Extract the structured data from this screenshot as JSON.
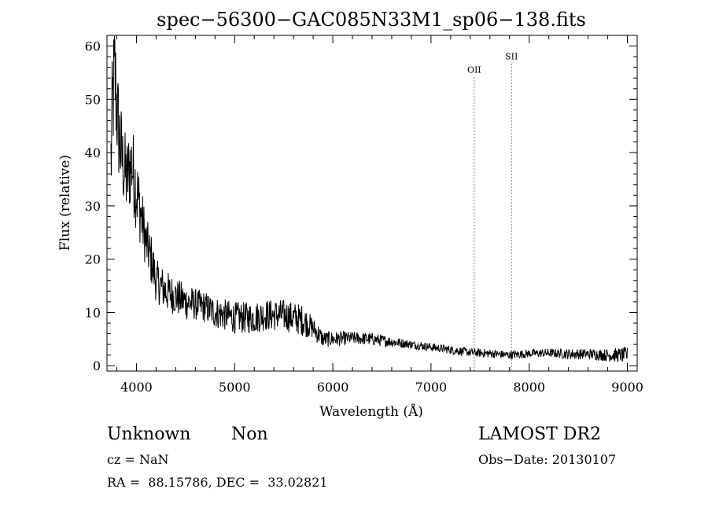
{
  "chart_data": {
    "type": "line",
    "title": "spec−56300−GAC085N33M1_sp06−138.fits",
    "xlabel": "Wavelength (Å)",
    "ylabel": "Flux (relative)",
    "xlim": [
      3700,
      9100
    ],
    "ylim": [
      -1,
      62
    ],
    "xticks": [
      4000,
      5000,
      6000,
      7000,
      8000,
      9000
    ],
    "xtick_labels": [
      "4000",
      "5000",
      "6000",
      "7000",
      "8000",
      "9000"
    ],
    "yticks": [
      0,
      10,
      20,
      30,
      40,
      50,
      60
    ],
    "ytick_labels": [
      "0",
      "10",
      "20",
      "30",
      "40",
      "50",
      "60"
    ],
    "grid": false,
    "lines": [
      {
        "name": "OII",
        "x": 7440,
        "label_y": 55
      },
      {
        "name": "SII",
        "x": 7820,
        "label_y": 57.5
      }
    ],
    "series": [
      {
        "x": [
          3740,
          3760,
          3780,
          3800,
          3830,
          3860,
          3900,
          3950,
          4000,
          4050,
          4100,
          4150,
          4200,
          4300,
          4400,
          4500,
          4600,
          4700,
          4800,
          4900,
          5000,
          5100,
          5200,
          5300,
          5400,
          5500,
          5600,
          5700,
          5800,
          5850,
          5900,
          5950,
          6000,
          6200,
          6400,
          6600,
          6800,
          7000,
          7200,
          7400,
          7600,
          7800,
          8000,
          8200,
          8400,
          8600,
          8800,
          9000
        ],
        "values": [
          38,
          50,
          55,
          48,
          42,
          38,
          35,
          38,
          33,
          28,
          23,
          20,
          16,
          14,
          13,
          12,
          11.5,
          11,
          10,
          9.5,
          9,
          9,
          9,
          9.5,
          9.5,
          9.5,
          9,
          8.5,
          7,
          6,
          5,
          5,
          5,
          5.2,
          5,
          4.5,
          4,
          3.5,
          3,
          2.5,
          2.3,
          2,
          2.3,
          2.4,
          2.2,
          2.2,
          2,
          2
        ],
        "noise_amp": [
          12,
          12,
          12,
          10,
          10,
          8,
          8,
          8,
          8,
          6,
          5,
          5,
          4,
          4,
          3.5,
          3.5,
          3,
          3,
          3,
          3,
          3,
          3,
          3,
          3,
          3,
          3,
          3,
          3,
          2,
          2,
          1.5,
          1.5,
          1.5,
          1.2,
          1.2,
          1,
          0.8,
          0.8,
          0.8,
          0.8,
          0.8,
          0.8,
          0.8,
          0.8,
          1,
          1,
          1.2,
          1.5
        ]
      }
    ]
  },
  "info": {
    "class": "Unknown",
    "subclass": "Non",
    "survey": "LAMOST DR2",
    "cz": "cz = NaN",
    "obs_date": "Obs−Date: 20130107",
    "coords": "RA =  88.15786, DEC =  33.02821"
  }
}
